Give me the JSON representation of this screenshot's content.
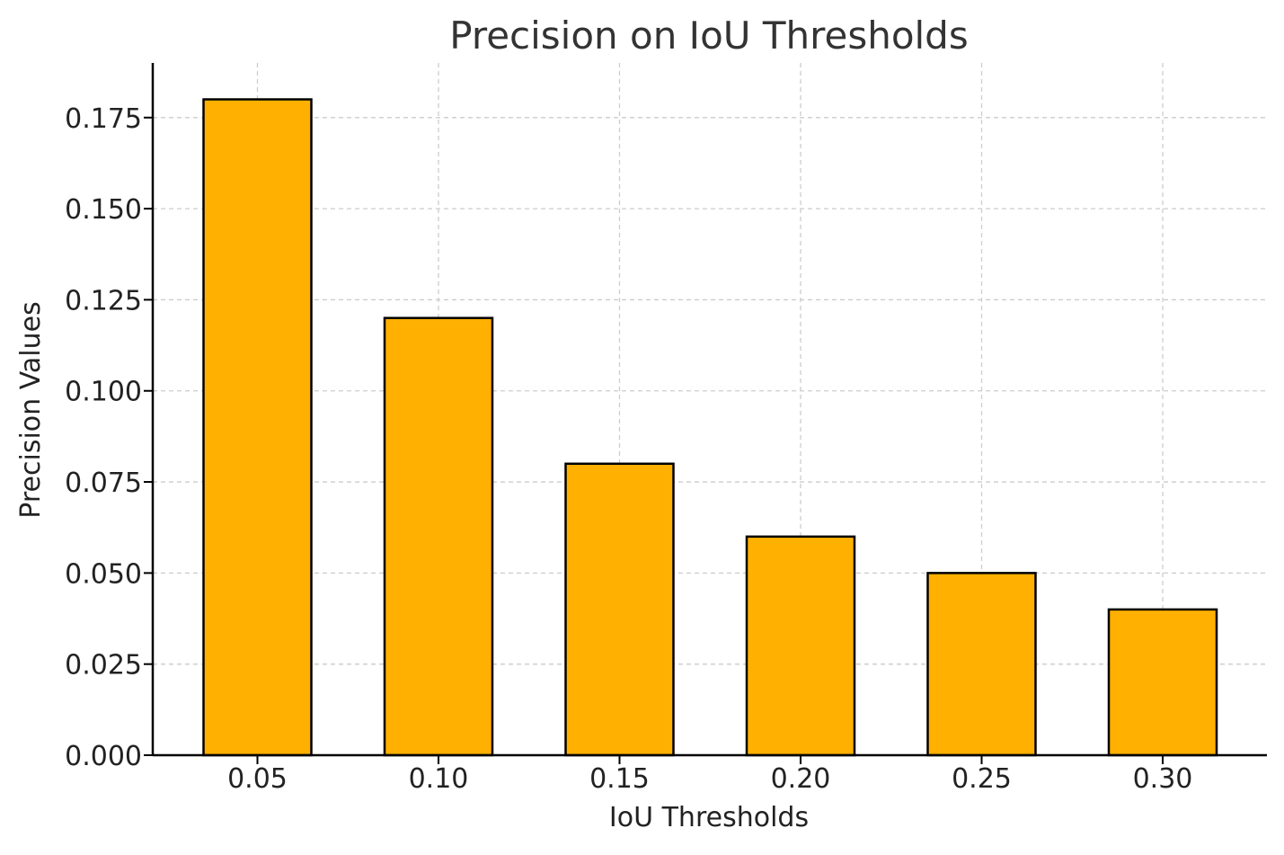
{
  "chart_data": {
    "type": "bar",
    "title": "Precision on IoU Thresholds",
    "xlabel": "IoU Thresholds",
    "ylabel": "Precision Values",
    "categories": [
      "0.05",
      "0.10",
      "0.15",
      "0.20",
      "0.25",
      "0.30"
    ],
    "values": [
      0.18,
      0.12,
      0.08,
      0.06,
      0.05,
      0.04
    ],
    "ylim": [
      0,
      0.19
    ],
    "yticks": [
      0.0,
      0.025,
      0.05,
      0.075,
      0.1,
      0.125,
      0.15,
      0.175
    ],
    "ytick_labels": [
      "0.000",
      "0.025",
      "0.050",
      "0.075",
      "0.100",
      "0.125",
      "0.150",
      "0.175"
    ],
    "grid": true,
    "colors": {
      "bar_fill": "#FFB000",
      "bar_edge": "#000000",
      "grid": "#cccccc",
      "axis": "#000000",
      "title": "#333333",
      "text": "#222222"
    }
  }
}
